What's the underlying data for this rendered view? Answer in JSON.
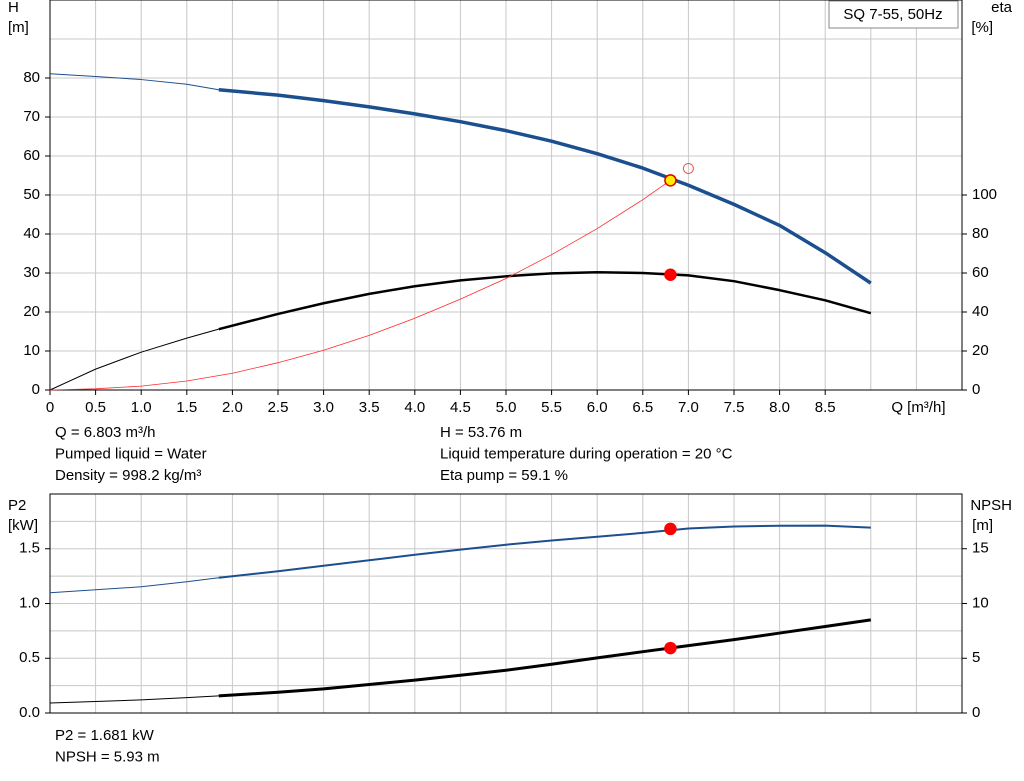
{
  "chart_data": [
    {
      "type": "line",
      "title": "SQ 7-55, 50Hz",
      "ylabel": "H",
      "yunit": "[m]",
      "y2label": "eta",
      "y2unit": "[%]",
      "xlabel": "Q [m³/h]",
      "xlim": [
        0,
        10
      ],
      "ylim": [
        0,
        100
      ],
      "y2lim": [
        0,
        200
      ],
      "xticks": [
        0,
        0.5,
        {
          "value": 1,
          "label": "1.0"
        },
        1.5,
        {
          "value": 2,
          "label": "2.0"
        },
        2.5,
        {
          "value": 3,
          "label": "3.0"
        },
        3.5,
        {
          "value": 4,
          "label": "4.0"
        },
        4.5,
        {
          "value": 5,
          "label": "5.0"
        },
        5.5,
        {
          "value": 6,
          "label": "6.0"
        },
        6.5,
        {
          "value": 7,
          "label": "7.0"
        },
        7.5,
        {
          "value": 8,
          "label": "8.0"
        },
        8.5
      ],
      "xgrid": [
        0.5,
        1,
        1.5,
        2,
        2.5,
        3,
        3.5,
        4,
        4.5,
        5,
        5.5,
        6,
        6.5,
        7,
        7.5,
        8,
        8.5,
        9,
        9.5
      ],
      "yticks": [
        0,
        10,
        20,
        30,
        40,
        50,
        60,
        70,
        80
      ],
      "ygrid": [
        10,
        20,
        30,
        40,
        50,
        60,
        70,
        80,
        90
      ],
      "y2ticks": [
        0,
        20,
        40,
        60,
        80,
        100
      ],
      "series": [
        {
          "color": "#1c4f8f",
          "width": 1,
          "x": [
            0,
            0.5,
            1,
            1.5,
            1.85
          ],
          "values": [
            81.1,
            80.4,
            79.6,
            78.4,
            77.0
          ]
        },
        {
          "color": "#1c4f8f",
          "width": 3.5,
          "x": [
            1.85,
            2.5,
            3,
            3.5,
            4,
            4.5,
            5,
            5.5,
            6,
            6.5,
            7,
            7.5,
            8,
            8.5,
            9
          ],
          "values": [
            77.0,
            75.6,
            74.2,
            72.6,
            70.8,
            68.8,
            66.5,
            63.8,
            60.6,
            56.9,
            52.5,
            47.6,
            42.2,
            35.2,
            27.4
          ]
        },
        {
          "color": "#000000",
          "width": 1,
          "axis": "y2",
          "x": [
            0,
            0.5,
            1,
            1.5,
            1.85
          ],
          "values": [
            0,
            10.7,
            19.4,
            26.6,
            31.2
          ]
        },
        {
          "color": "#000000",
          "width": 2.5,
          "axis": "y2",
          "x": [
            1.85,
            2.5,
            3,
            3.5,
            4,
            4.5,
            5,
            5.5,
            6,
            6.5,
            7,
            7.5,
            8,
            8.5,
            9
          ],
          "values": [
            31.2,
            39.0,
            44.5,
            49.3,
            53.2,
            56.2,
            58.3,
            59.8,
            60.4,
            60.0,
            58.8,
            55.8,
            51.2,
            46.0,
            39.4
          ]
        },
        {
          "color": "#ff2a2a",
          "width": 0.8,
          "x": [
            0,
            0.5,
            1,
            1.5,
            2,
            2.5,
            3,
            3.5,
            4,
            4.5,
            5,
            5.5,
            6,
            6.5,
            6.803
          ],
          "values": [
            0,
            0.3,
            1.0,
            2.3,
            4.3,
            7.0,
            10.2,
            14.0,
            18.4,
            23.3,
            28.6,
            34.7,
            41.4,
            48.8,
            53.76
          ]
        }
      ],
      "points": [
        {
          "x": 7.0,
          "y": 56.8,
          "fill": "none",
          "stroke": "#ff5050"
        },
        {
          "x": 6.803,
          "y": 59.1,
          "axis": "y2",
          "fill": "#ff0000",
          "stroke": "#ff0000"
        },
        {
          "x": 6.803,
          "y": 53.76,
          "fill": "#ffee00",
          "stroke": "#e00000"
        }
      ],
      "info": [
        "Q = 6.803 m³/h",
        "Pumped liquid = Water",
        "Density = 998.2 kg/m³",
        "H = 53.76 m",
        "Liquid temperature during operation = 20 °C",
        "Eta pump = 59.1 %"
      ]
    },
    {
      "type": "line",
      "ylabel": "P2",
      "yunit": "[kW]",
      "y2label": "NPSH",
      "y2unit": "[m]",
      "xlim": [
        0,
        10
      ],
      "ylim": [
        0,
        2
      ],
      "y2lim": [
        0,
        20
      ],
      "xgrid": [
        0.5,
        1,
        1.5,
        2,
        2.5,
        3,
        3.5,
        4,
        4.5,
        5,
        5.5,
        6,
        6.5,
        7,
        7.5,
        8,
        8.5,
        9,
        9.5
      ],
      "yticks": [
        {
          "value": 0,
          "label": "0.0"
        },
        0.5,
        {
          "value": 1,
          "label": "1.0"
        },
        1.5
      ],
      "ygrid": [
        0.25,
        0.5,
        0.75,
        1,
        1.25,
        1.5,
        1.75
      ],
      "y2ticks": [
        0,
        5,
        10,
        15
      ],
      "series": [
        {
          "color": "#1c4f8f",
          "width": 1,
          "x": [
            0,
            0.5,
            1,
            1.5,
            1.85
          ],
          "values": [
            1.098,
            1.125,
            1.153,
            1.199,
            1.235
          ]
        },
        {
          "color": "#1c4f8f",
          "width": 2,
          "x": [
            1.85,
            2.5,
            3,
            3.5,
            4,
            4.5,
            5,
            5.5,
            6,
            6.5,
            7,
            7.5,
            8,
            8.5,
            9
          ],
          "values": [
            1.235,
            1.295,
            1.345,
            1.395,
            1.445,
            1.492,
            1.537,
            1.575,
            1.61,
            1.645,
            1.685,
            1.703,
            1.71,
            1.711,
            1.693
          ]
        },
        {
          "color": "#000000",
          "width": 1,
          "axis": "y2",
          "x": [
            0,
            0.5,
            1,
            1.5,
            1.85
          ],
          "values": [
            0.91,
            1.05,
            1.2,
            1.4,
            1.56
          ]
        },
        {
          "color": "#000000",
          "width": 3,
          "axis": "y2",
          "x": [
            1.85,
            2.5,
            3,
            3.5,
            4,
            4.5,
            5,
            5.5,
            6,
            6.5,
            7,
            7.5,
            8,
            8.5,
            9
          ],
          "values": [
            1.56,
            1.9,
            2.2,
            2.6,
            3.0,
            3.45,
            3.9,
            4.45,
            5.03,
            5.6,
            6.15,
            6.7,
            7.3,
            7.9,
            8.5
          ]
        }
      ],
      "points": [
        {
          "x": 6.803,
          "y": 1.681,
          "fill": "#ff0000",
          "stroke": "#ff0000"
        },
        {
          "x": 6.803,
          "y": 5.93,
          "axis": "y2",
          "fill": "#ff0000",
          "stroke": "#ff0000"
        }
      ],
      "info": [
        "P2 = 1.681 kW",
        "NPSH = 5.93 m"
      ]
    }
  ]
}
